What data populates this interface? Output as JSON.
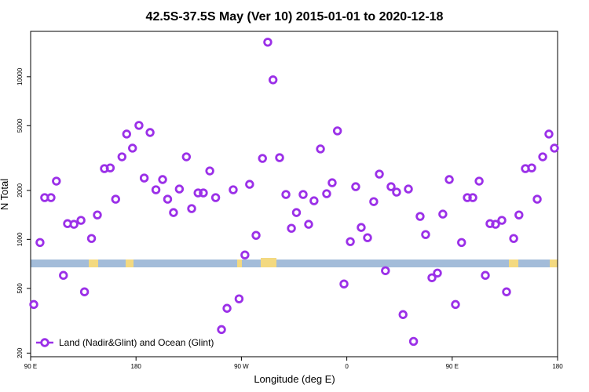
{
  "chart_data": {
    "type": "scatter",
    "title": "42.5S-37.5S May (Ver 10)   2015-01-01 to 2020-12-18",
    "x_label": "Longitude (deg E)",
    "y_label": "N Total",
    "yscale": "log",
    "legend": "lower left",
    "xlim": [
      90,
      540
    ],
    "xticks": [
      {
        "value": 90,
        "label": "90 E"
      },
      {
        "value": 180,
        "label": "180"
      },
      {
        "value": 270,
        "label": "90 W"
      },
      {
        "value": 360,
        "label": "0"
      },
      {
        "value": 450,
        "label": "90 E"
      },
      {
        "value": 540,
        "label": "180"
      }
    ],
    "ylim": [
      190,
      19000
    ],
    "yticks": [
      200,
      500,
      1000,
      2000,
      5000,
      10000
    ],
    "x": [
      92.7,
      98,
      102,
      107.4,
      112,
      118,
      121.5,
      127,
      133,
      136,
      142,
      147,
      153,
      158,
      162.6,
      168,
      172,
      177,
      182.5,
      187,
      192,
      197,
      202.7,
      207,
      212,
      217,
      223,
      227.5,
      233,
      237.5,
      243,
      248,
      253,
      257.7,
      263,
      268,
      273,
      277,
      282.5,
      288,
      292.5,
      297,
      302.6,
      308,
      312.7,
      317,
      322.7,
      327.4,
      332,
      337.5,
      342.8,
      347.5,
      352,
      357.6,
      363,
      367.6,
      372.3,
      377.7,
      383,
      387.8,
      393,
      397.8,
      402.5,
      408,
      412.6,
      417,
      422.6,
      427.3,
      432.7,
      437.4,
      442,
      447.5,
      452.8,
      458,
      462.9,
      467.6,
      473,
      478.3,
      482.3,
      487,
      492.4,
      496.4,
      502.5,
      507,
      512.5,
      517.9,
      522.6,
      527.3,
      532.6,
      537.3
    ],
    "series": [
      {
        "name": "Land (Nadir&Glint) and Ocean (Glint)",
        "color": "#9b30e8",
        "values": [
          398,
          957,
          1806,
          1806,
          2281,
          601,
          1250,
          1238,
          1309,
          476,
          1013,
          1413,
          2724,
          2750,
          1766,
          3218,
          4442,
          3637,
          5020,
          2383,
          4540,
          2018,
          2333,
          1766,
          1462,
          2040,
          3218,
          1546,
          1930,
          1930,
          2635,
          1806,
          279,
          377,
          2018,
          431,
          802,
          2180,
          1059,
          3146,
          16300,
          9564,
          3180,
          1888,
          1170,
          1462,
          1888,
          1238,
          1727,
          3597,
          1909,
          2229,
          4645,
          532,
          969,
          2109,
          1184,
          1024,
          1707,
          2520,
          642,
          2109,
          1952,
          345,
          2040,
          236,
          1384,
          1071,
          581,
          621,
          1430,
          2333,
          398,
          957,
          1806,
          1806,
          2281,
          601,
          1250,
          1238,
          1309,
          476,
          1013,
          1413,
          2724,
          2750,
          1766,
          3218,
          4442,
          3637
        ]
      }
    ]
  }
}
